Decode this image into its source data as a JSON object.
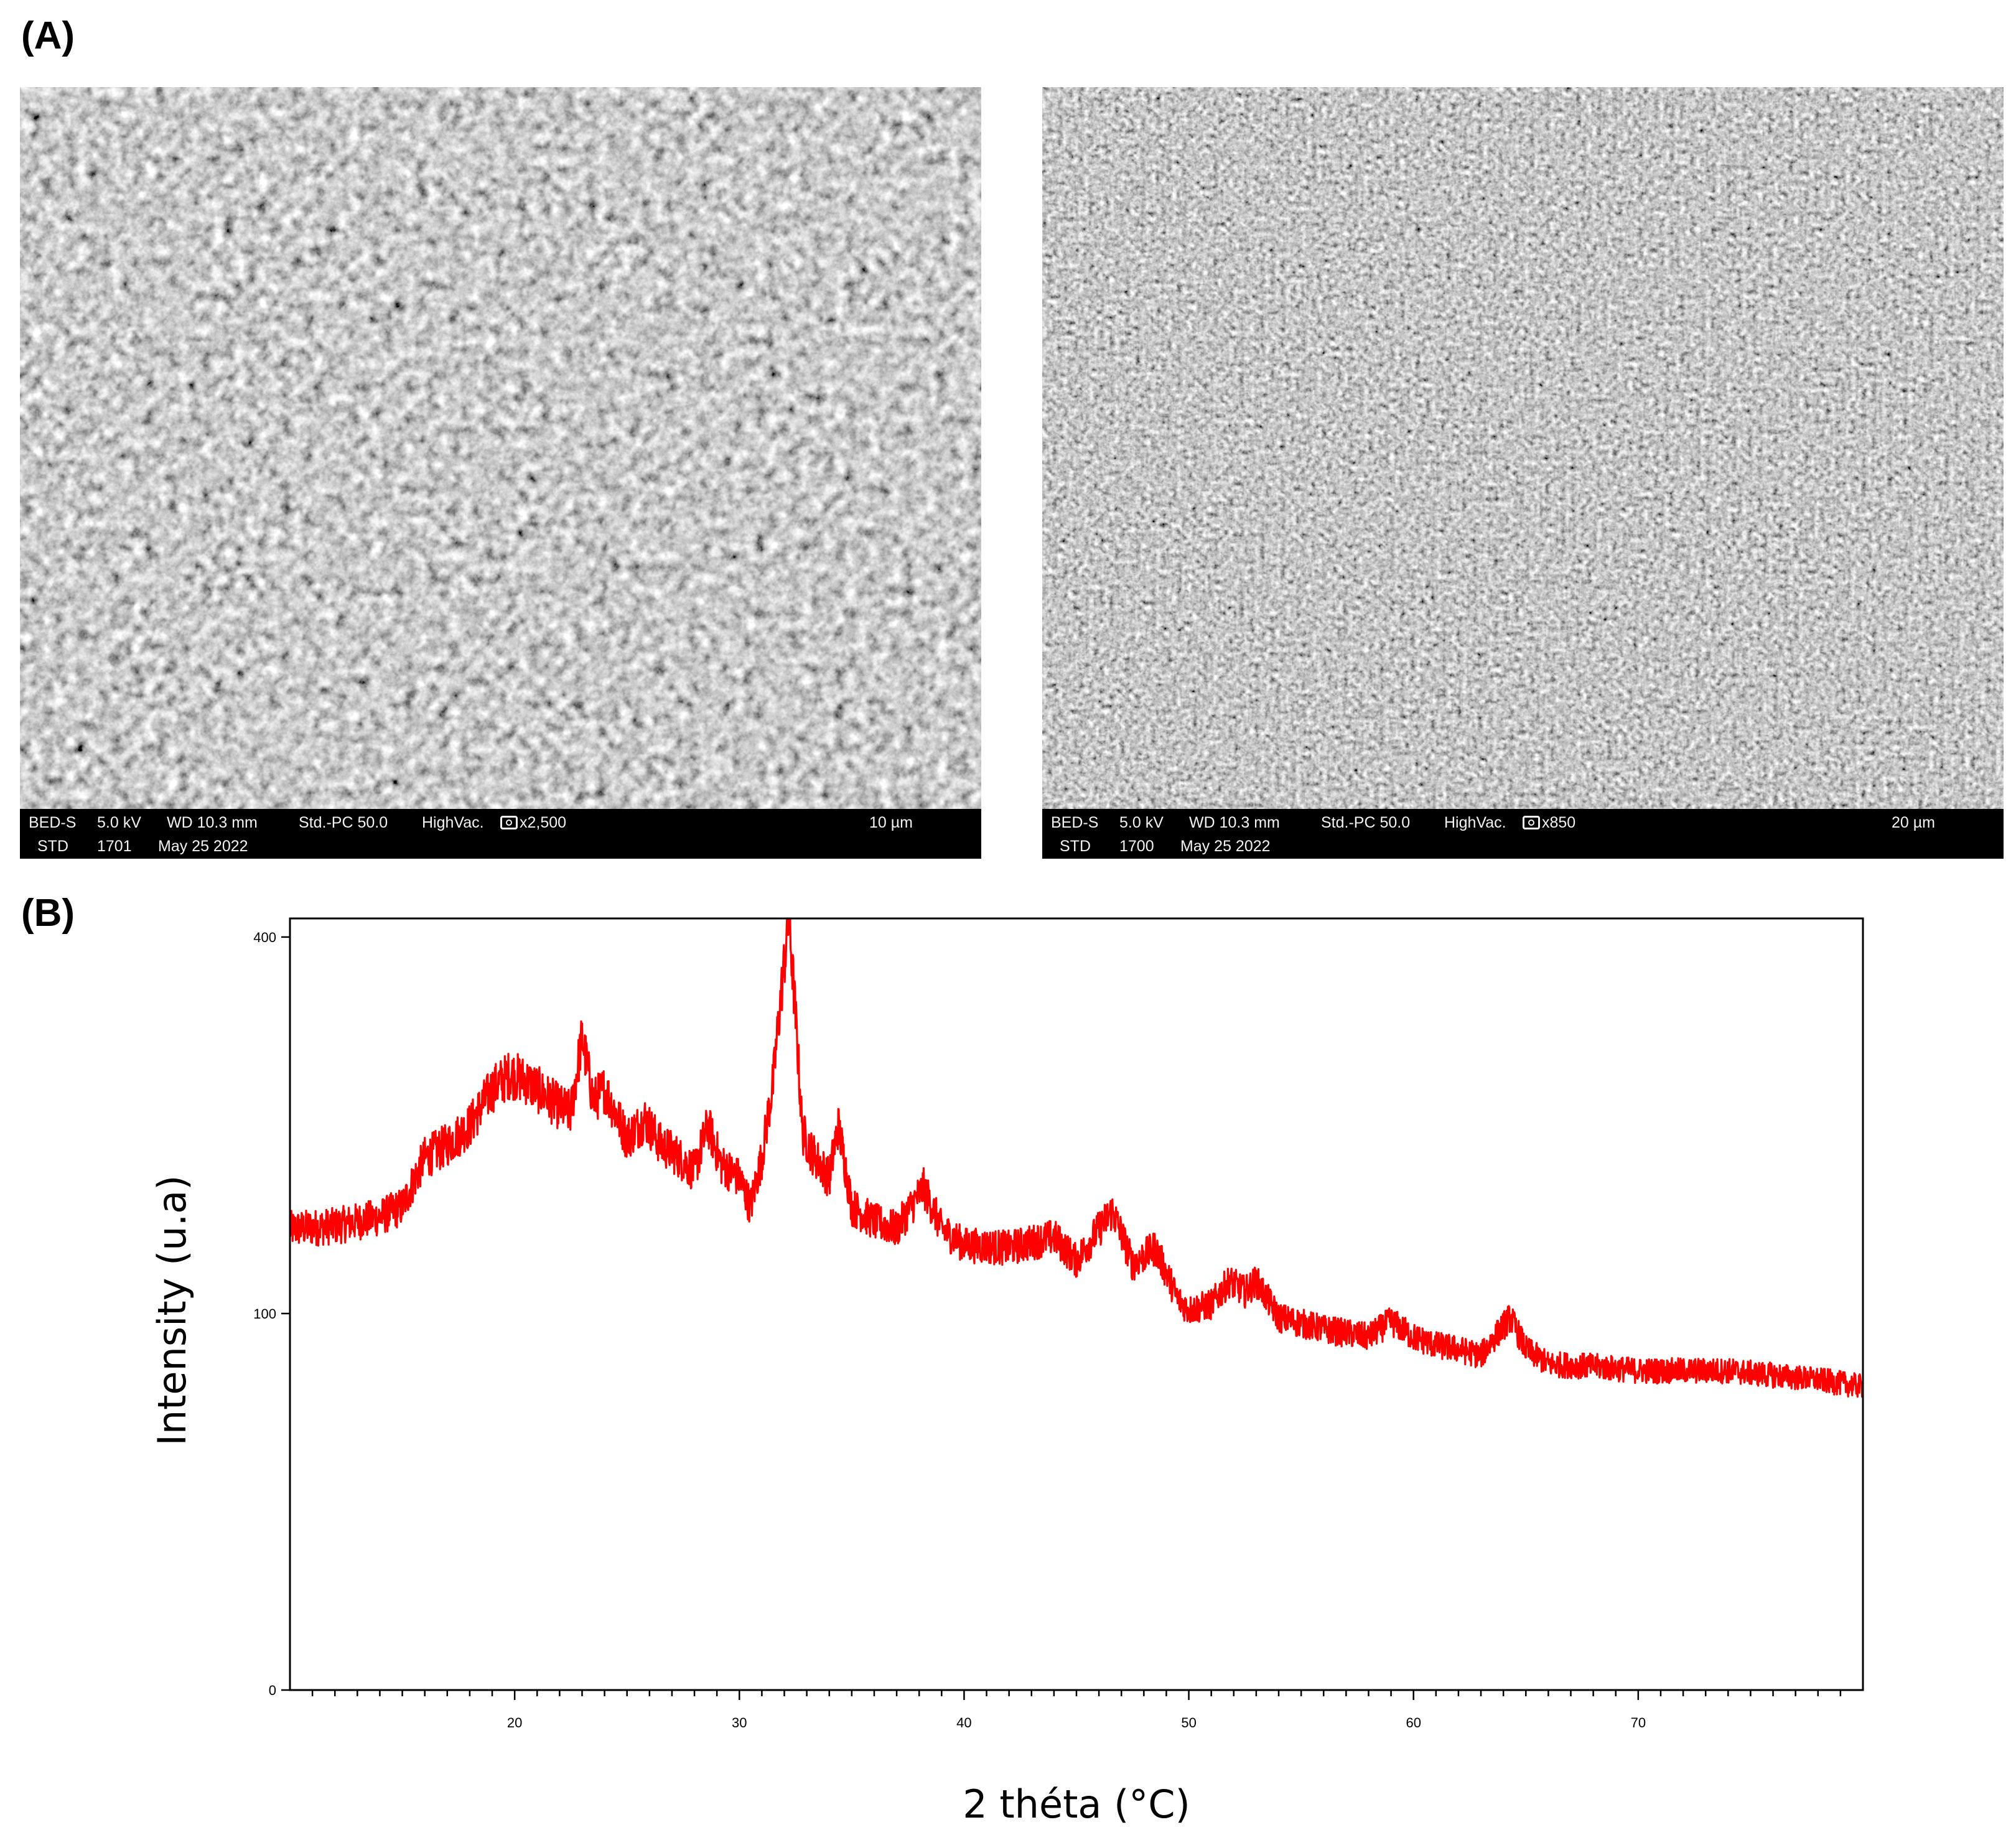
{
  "panels": {
    "a_label": "(A)",
    "b_label": "(B)"
  },
  "sem_images": [
    {
      "row1": {
        "detector": "BED-S",
        "voltage": "5.0 kV",
        "wd": "WD 10.3 mm",
        "std_pc": "Std.-PC 50.0",
        "vacuum": "HighVac.",
        "magnification": "x2,500",
        "scale": "10 µm"
      },
      "row2": {
        "mode": "STD",
        "number": "1701",
        "date": "May 25 2022"
      },
      "scalebar_fraction": 0.1955
    },
    {
      "row1": {
        "detector": "BED-S",
        "voltage": "5.0 kV",
        "wd": "WD 10.3 mm",
        "std_pc": "Std.-PC 50.0",
        "vacuum": "HighVac.",
        "magnification": "x850",
        "scale": "20 µm"
      },
      "row2": {
        "mode": "STD",
        "number": "1700",
        "date": "May 25 2022"
      },
      "scalebar_fraction": 0.1333
    }
  ],
  "chart_data": {
    "type": "line",
    "title": "",
    "xlabel": "2 théta (°C)",
    "ylabel": "Intensity (u.a)",
    "xlim": [
      10,
      80
    ],
    "ylim": [
      0,
      420
    ],
    "x_ticks": [
      20,
      30,
      40,
      50,
      60,
      70
    ],
    "y_ticks": [
      0,
      100,
      400
    ],
    "y_tick_labels": [
      "0",
      "100",
      "400"
    ],
    "y_scale": "sqrt",
    "grid": false,
    "series": [
      {
        "color": "#ff0000",
        "x": [
          10,
          12,
          14,
          15,
          16,
          17,
          18,
          19,
          19.8,
          20.5,
          21,
          22,
          22.5,
          23,
          23.5,
          24,
          25,
          25.8,
          26.5,
          27,
          28,
          28.6,
          29.2,
          30,
          30.5,
          31,
          31.5,
          32.2,
          32.8,
          33.2,
          34,
          34.4,
          35,
          36,
          37,
          38.2,
          39,
          40,
          42,
          44,
          45,
          46.6,
          47.5,
          48.5,
          49.5,
          50,
          51,
          51.8,
          52.5,
          53,
          54,
          56,
          58,
          59,
          60,
          61,
          62,
          63,
          64.3,
          65,
          66,
          68,
          70,
          72,
          74,
          76,
          78,
          80
        ],
        "y": [
          150,
          152,
          158,
          165,
          200,
          210,
          225,
          255,
          268,
          262,
          255,
          240,
          235,
          300,
          245,
          255,
          215,
          230,
          210,
          205,
          190,
          225,
          195,
          185,
          165,
          200,
          260,
          420,
          220,
          205,
          185,
          225,
          165,
          155,
          150,
          178,
          150,
          140,
          138,
          145,
          130,
          162,
          128,
          138,
          108,
          102,
          105,
          118,
          112,
          118,
          98,
          92,
          88,
          96,
          88,
          84,
          82,
          79,
          98,
          82,
          75,
          74,
          72,
          72,
          72,
          70,
          68,
          65
        ]
      }
    ]
  }
}
